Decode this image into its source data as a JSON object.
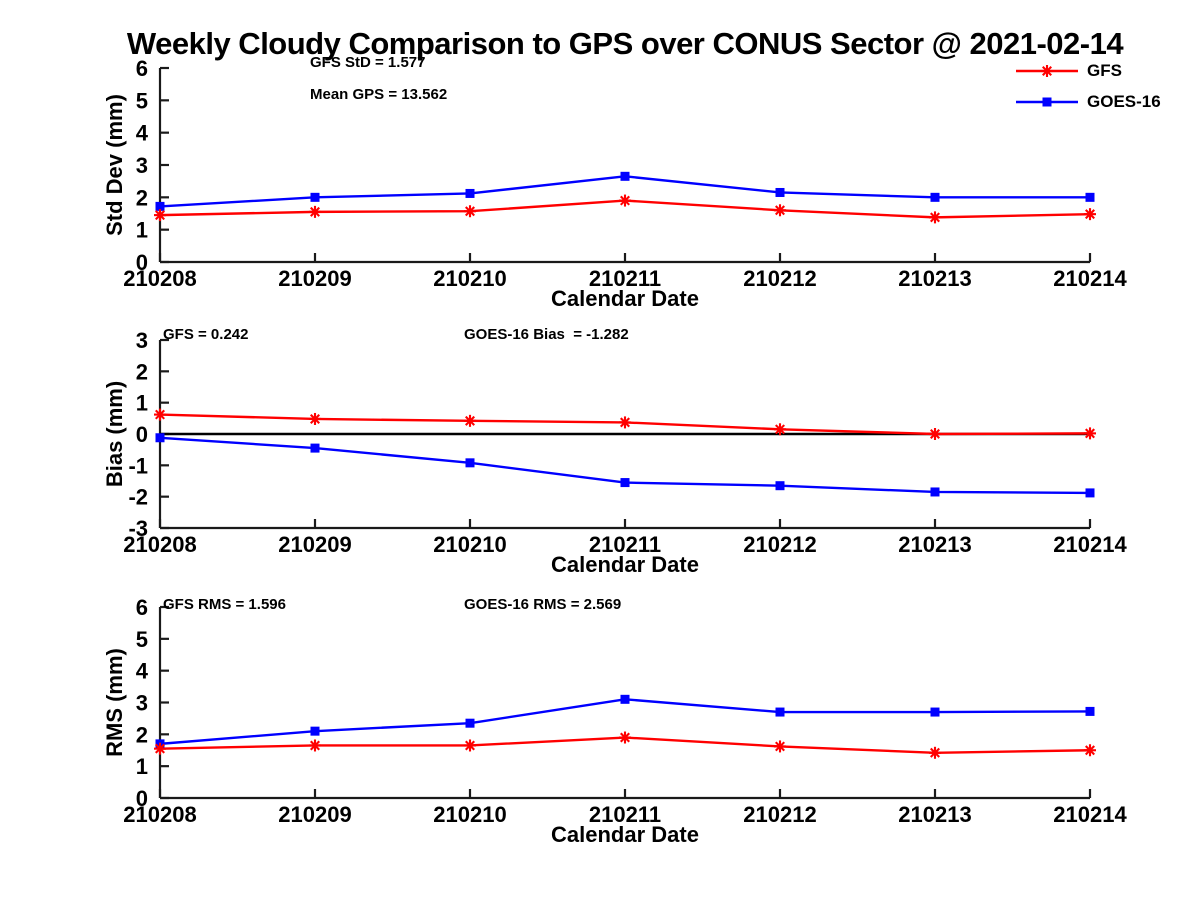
{
  "page": {
    "title": "Weekly Cloudy Comparison to GPS over CONUS Sector @ 2021-02-14",
    "background": "#ffffff"
  },
  "legend": {
    "position": "top-right",
    "items": [
      {
        "label": "GFS",
        "color": "#ff0000",
        "marker": "asterisk"
      },
      {
        "label": "GOES-16",
        "color": "#0000ff",
        "marker": "square"
      }
    ]
  },
  "chart_data": [
    {
      "type": "line",
      "ylabel": "Std Dev (mm)",
      "xlabel": "Calendar Date",
      "ylim": [
        0,
        6
      ],
      "yticks": [
        0,
        1,
        2,
        3,
        4,
        5,
        6
      ],
      "grid": false,
      "zero_line": false,
      "categories": [
        "210208",
        "210209",
        "210210",
        "210211",
        "210212",
        "210213",
        "210214"
      ],
      "series": [
        {
          "name": "GFS",
          "color": "#ff0000",
          "marker": "asterisk",
          "values": [
            1.45,
            1.55,
            1.57,
            1.9,
            1.6,
            1.38,
            1.48
          ]
        },
        {
          "name": "GOES-16",
          "color": "#0000ff",
          "marker": "square",
          "values": [
            1.72,
            2.0,
            2.12,
            2.65,
            2.15,
            2.0,
            2.0
          ]
        }
      ],
      "annotations": [
        {
          "text": "GFS StD = 1.577"
        },
        {
          "text": "Mean GPS = 13.562"
        }
      ]
    },
    {
      "type": "line",
      "ylabel": "Bias (mm)",
      "xlabel": "Calendar Date",
      "ylim": [
        -3,
        3
      ],
      "yticks": [
        -3,
        -2,
        -1,
        0,
        1,
        2,
        3
      ],
      "grid": false,
      "zero_line": true,
      "categories": [
        "210208",
        "210209",
        "210210",
        "210211",
        "210212",
        "210213",
        "210214"
      ],
      "series": [
        {
          "name": "GFS",
          "color": "#ff0000",
          "marker": "asterisk",
          "values": [
            0.62,
            0.48,
            0.42,
            0.37,
            0.15,
            0.0,
            0.02
          ]
        },
        {
          "name": "GOES-16",
          "color": "#0000ff",
          "marker": "square",
          "values": [
            -0.12,
            -0.45,
            -0.92,
            -1.55,
            -1.65,
            -1.85,
            -1.88
          ]
        }
      ],
      "annotations": [
        {
          "text": "GFS = 0.242"
        },
        {
          "text": "GOES-16 Bias  = -1.282"
        }
      ]
    },
    {
      "type": "line",
      "ylabel": "RMS (mm)",
      "xlabel": "Calendar Date",
      "ylim": [
        0,
        6
      ],
      "yticks": [
        0,
        1,
        2,
        3,
        4,
        5,
        6
      ],
      "grid": false,
      "zero_line": false,
      "categories": [
        "210208",
        "210209",
        "210210",
        "210211",
        "210212",
        "210213",
        "210214"
      ],
      "series": [
        {
          "name": "GFS",
          "color": "#ff0000",
          "marker": "asterisk",
          "values": [
            1.55,
            1.65,
            1.65,
            1.9,
            1.62,
            1.42,
            1.5
          ]
        },
        {
          "name": "GOES-16",
          "color": "#0000ff",
          "marker": "square",
          "values": [
            1.7,
            2.1,
            2.35,
            3.1,
            2.7,
            2.7,
            2.72
          ]
        }
      ],
      "annotations": [
        {
          "text": "GFS RMS = 1.596"
        },
        {
          "text": "GOES-16 RMS = 2.569"
        }
      ]
    }
  ]
}
